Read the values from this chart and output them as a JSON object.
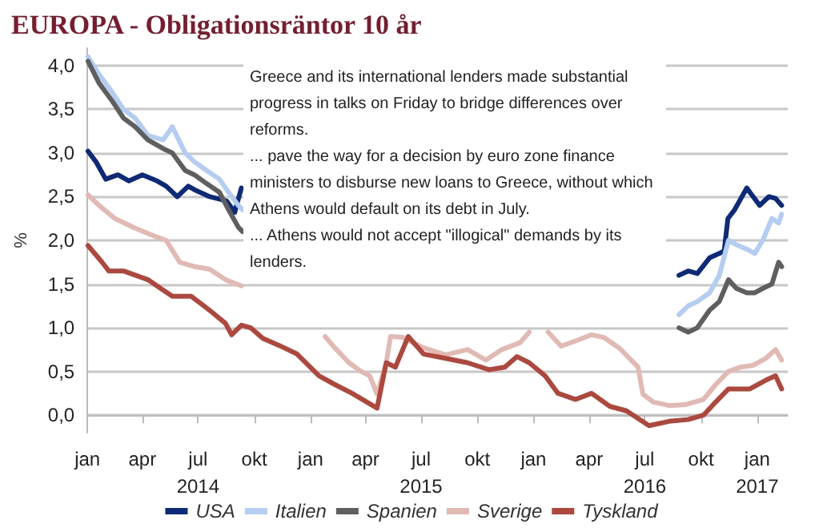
{
  "chart_data": {
    "type": "line",
    "title": "EUROPA - Obligationsräntor 10 år",
    "ylabel": "%",
    "annotations": [
      "Greece and its international lenders made substantial progress in talks on Friday to bridge differences over reforms.",
      "... pave the way for a decision by euro zone finance ministers to disburse new loans to Greece, without which Athens would default on its debt in July.",
      "... Athens would not accept \"illogical\" demands by its lenders."
    ],
    "xlim": [
      "2014-01-01",
      "2017-02-20"
    ],
    "xticks": [
      {
        "value": "2014-01-01",
        "label": "jan"
      },
      {
        "value": "2014-04-01",
        "label": "apr"
      },
      {
        "value": "2014-07-01",
        "label": "jul\n2014"
      },
      {
        "value": "2014-10-01",
        "label": "okt"
      },
      {
        "value": "2015-01-01",
        "label": "jan"
      },
      {
        "value": "2015-04-01",
        "label": "apr"
      },
      {
        "value": "2015-07-01",
        "label": "jul\n2015"
      },
      {
        "value": "2015-10-01",
        "label": "okt"
      },
      {
        "value": "2016-01-01",
        "label": "jan"
      },
      {
        "value": "2016-04-01",
        "label": "apr"
      },
      {
        "value": "2016-07-01",
        "label": "jul\n2016"
      },
      {
        "value": "2016-10-01",
        "label": "okt"
      },
      {
        "value": "2017-01-01",
        "label": "jan\n2017"
      }
    ],
    "ylim": [
      -0.2,
      4.2
    ],
    "yticks": [
      {
        "value": 0,
        "label": "0,0"
      },
      {
        "value": 0.5,
        "label": "0,5"
      },
      {
        "value": 1,
        "label": "1,0"
      },
      {
        "value": 1.5,
        "label": "1,5"
      },
      {
        "value": 2,
        "label": "2,0"
      },
      {
        "value": 2.5,
        "label": "2,5"
      },
      {
        "value": 3,
        "label": "3,0"
      },
      {
        "value": 3.5,
        "label": "3,5"
      },
      {
        "value": 4,
        "label": "4,0"
      }
    ],
    "grid": "y",
    "legend": "bottom",
    "marker": "none",
    "line_style": "solid",
    "series": [
      {
        "name": "USA",
        "color": "#0d2a7a",
        "x": [
          "2014-01-02",
          "2014-01-15",
          "2014-01-31",
          "2014-02-20",
          "2014-03-10",
          "2014-04-01",
          "2014-04-25",
          "2014-05-10",
          "2014-05-28",
          "2014-06-15",
          "2014-06-25",
          "2014-07-20",
          "2014-08-17",
          "2014-08-30",
          "2014-09-10",
          "2015-06-01",
          "2016-08-26",
          "2016-09-10",
          "2016-09-25",
          "2016-10-15",
          "2016-10-31",
          "2016-11-08",
          "2016-11-14",
          "2016-11-25",
          "2016-12-15",
          "2016-12-20",
          "2017-01-05",
          "2017-01-20",
          "2017-01-31",
          "2017-02-10"
        ],
        "values": [
          3.02,
          2.9,
          2.7,
          2.75,
          2.68,
          2.75,
          2.68,
          2.62,
          2.5,
          2.62,
          2.58,
          2.5,
          2.45,
          2.32,
          2.6,
          null,
          1.6,
          1.65,
          1.62,
          1.8,
          1.85,
          1.88,
          2.25,
          2.35,
          2.6,
          2.55,
          2.4,
          2.5,
          2.48,
          2.4
        ]
      },
      {
        "name": "Italien",
        "color": "#b4cdf3",
        "x": [
          "2014-01-02",
          "2014-01-20",
          "2014-02-10",
          "2014-03-01",
          "2014-03-20",
          "2014-04-10",
          "2014-05-05",
          "2014-05-20",
          "2014-06-10",
          "2014-06-25",
          "2014-07-15",
          "2014-08-05",
          "2014-08-20",
          "2014-09-05",
          "2014-09-12",
          "2015-06-01",
          "2016-08-26",
          "2016-09-10",
          "2016-09-25",
          "2016-10-15",
          "2016-10-31",
          "2016-11-15",
          "2016-11-28",
          "2016-12-15",
          "2016-12-28",
          "2017-01-10",
          "2017-01-25",
          "2017-02-05",
          "2017-02-10"
        ],
        "values": [
          4.1,
          3.9,
          3.7,
          3.5,
          3.4,
          3.2,
          3.15,
          3.3,
          3.0,
          2.9,
          2.8,
          2.7,
          2.55,
          2.4,
          2.35,
          null,
          1.15,
          1.25,
          1.3,
          1.4,
          1.6,
          2.0,
          1.95,
          1.9,
          1.85,
          2.0,
          2.25,
          2.2,
          2.3
        ]
      },
      {
        "name": "Spanien",
        "color": "#5f5f5f",
        "x": [
          "2014-01-02",
          "2014-01-20",
          "2014-02-10",
          "2014-03-01",
          "2014-03-20",
          "2014-04-10",
          "2014-05-05",
          "2014-05-20",
          "2014-06-10",
          "2014-06-25",
          "2014-07-15",
          "2014-08-05",
          "2014-08-20",
          "2014-09-05",
          "2014-09-12",
          "2015-06-01",
          "2016-08-26",
          "2016-09-10",
          "2016-09-25",
          "2016-10-15",
          "2016-10-31",
          "2016-11-15",
          "2016-11-28",
          "2016-12-15",
          "2016-12-28",
          "2017-01-10",
          "2017-01-25",
          "2017-02-05",
          "2017-02-10"
        ],
        "values": [
          4.05,
          3.8,
          3.6,
          3.4,
          3.3,
          3.15,
          3.05,
          3.0,
          2.8,
          2.75,
          2.65,
          2.55,
          2.35,
          2.15,
          2.1,
          null,
          1.0,
          0.95,
          1.0,
          1.2,
          1.3,
          1.55,
          1.45,
          1.4,
          1.4,
          1.45,
          1.5,
          1.75,
          1.7
        ]
      },
      {
        "name": "Sverige",
        "color": "#e2b9b3",
        "x": [
          "2014-01-02",
          "2014-01-20",
          "2014-02-15",
          "2014-03-20",
          "2014-04-20",
          "2014-05-10",
          "2014-06-01",
          "2014-06-25",
          "2014-07-20",
          "2014-08-15",
          "2014-09-10",
          "2014-11-01",
          "2015-01-25",
          "2015-02-10",
          "2015-03-05",
          "2015-03-25",
          "2015-04-08",
          "2015-04-20",
          "2015-05-05",
          "2015-05-12",
          "2015-06-01",
          "2015-07-05",
          "2015-08-10",
          "2015-09-15",
          "2015-10-15",
          "2015-11-10",
          "2015-12-10",
          "2015-12-25",
          "2016-01-10",
          "2016-01-25",
          "2016-02-15",
          "2016-03-10",
          "2016-04-05",
          "2016-04-25",
          "2016-05-20",
          "2016-06-20",
          "2016-06-28",
          "2016-07-15",
          "2016-08-10",
          "2016-09-05",
          "2016-10-05",
          "2016-10-25",
          "2016-11-15",
          "2016-12-05",
          "2016-12-25",
          "2017-01-15",
          "2017-01-31",
          "2017-02-10"
        ],
        "values": [
          2.52,
          2.4,
          2.25,
          2.14,
          2.05,
          2.0,
          1.75,
          1.7,
          1.67,
          1.55,
          1.48,
          null,
          0.9,
          0.77,
          0.6,
          0.5,
          0.45,
          0.24,
          0.6,
          0.9,
          0.89,
          0.77,
          0.69,
          0.75,
          0.63,
          0.75,
          0.83,
          0.95,
          null,
          0.95,
          0.79,
          0.85,
          0.92,
          0.89,
          0.77,
          0.55,
          0.24,
          0.15,
          0.11,
          0.12,
          0.18,
          0.35,
          0.5,
          0.55,
          0.57,
          0.65,
          0.75,
          0.63
        ]
      },
      {
        "name": "Tyskland",
        "color": "#b0473c",
        "x": [
          "2014-01-02",
          "2014-01-25",
          "2014-02-05",
          "2014-03-01",
          "2014-04-10",
          "2014-05-01",
          "2014-05-20",
          "2014-06-20",
          "2014-07-20",
          "2014-08-15",
          "2014-08-25",
          "2014-09-10",
          "2014-09-25",
          "2014-10-15",
          "2014-11-10",
          "2014-12-10",
          "2015-01-15",
          "2015-02-10",
          "2015-03-10",
          "2015-04-20",
          "2015-05-05",
          "2015-05-20",
          "2015-06-10",
          "2015-07-05",
          "2015-08-10",
          "2015-09-15",
          "2015-10-20",
          "2015-11-15",
          "2015-12-05",
          "2015-12-25",
          "2016-01-20",
          "2016-02-10",
          "2016-03-10",
          "2016-04-05",
          "2016-05-05",
          "2016-06-01",
          "2016-07-08",
          "2016-08-10",
          "2016-09-10",
          "2016-10-05",
          "2016-10-25",
          "2016-11-15",
          "2016-12-20",
          "2017-01-15",
          "2017-01-31",
          "2017-02-10"
        ],
        "values": [
          1.94,
          1.75,
          1.65,
          1.65,
          1.55,
          1.45,
          1.36,
          1.36,
          1.2,
          1.05,
          0.92,
          1.03,
          1.0,
          0.88,
          0.8,
          0.7,
          0.45,
          0.35,
          0.25,
          0.08,
          0.6,
          0.55,
          0.9,
          0.7,
          0.65,
          0.6,
          0.52,
          0.55,
          0.67,
          0.6,
          0.45,
          0.25,
          0.18,
          0.25,
          0.1,
          0.05,
          -0.12,
          -0.07,
          -0.05,
          0.0,
          0.15,
          0.3,
          0.3,
          0.4,
          0.45,
          0.3
        ]
      }
    ]
  }
}
